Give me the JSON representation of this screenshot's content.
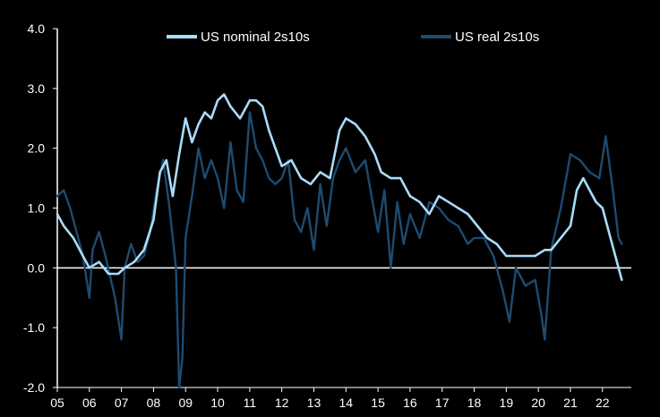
{
  "chart_data": {
    "type": "line",
    "title": "",
    "xlabel": "",
    "ylabel": "",
    "xlim": [
      2005.0,
      2022.9
    ],
    "ylim": [
      -2.0,
      4.0
    ],
    "yticks": [
      4.0,
      3.0,
      2.0,
      1.0,
      0.0,
      -1.0,
      -2.0
    ],
    "ytick_labels": [
      "4.0",
      "3.0",
      "2.0",
      "1.0",
      "0.0",
      "-1.0",
      "-2.0"
    ],
    "xticks": [
      2005,
      2006,
      2007,
      2008,
      2009,
      2010,
      2011,
      2012,
      2013,
      2014,
      2015,
      2016,
      2017,
      2018,
      2019,
      2020,
      2021,
      2022
    ],
    "xtick_labels": [
      "05",
      "06",
      "07",
      "08",
      "09",
      "10",
      "11",
      "12",
      "13",
      "14",
      "15",
      "16",
      "17",
      "18",
      "19",
      "20",
      "21",
      "22"
    ],
    "grid": false,
    "legend_position": "top",
    "background": "#000000",
    "series": [
      {
        "name": "US nominal 2s10s",
        "color": "#a9dcf7",
        "x": [
          2005.0,
          2005.2,
          2005.5,
          2005.8,
          2006.0,
          2006.3,
          2006.6,
          2006.9,
          2007.1,
          2007.4,
          2007.7,
          2008.0,
          2008.2,
          2008.4,
          2008.6,
          2008.8,
          2009.0,
          2009.2,
          2009.4,
          2009.6,
          2009.8,
          2010.0,
          2010.2,
          2010.4,
          2010.7,
          2011.0,
          2011.2,
          2011.4,
          2011.6,
          2011.8,
          2012.0,
          2012.3,
          2012.6,
          2012.9,
          2013.2,
          2013.5,
          2013.8,
          2014.0,
          2014.3,
          2014.6,
          2014.9,
          2015.1,
          2015.4,
          2015.7,
          2016.0,
          2016.3,
          2016.6,
          2016.9,
          2017.2,
          2017.5,
          2017.8,
          2018.1,
          2018.4,
          2018.7,
          2019.0,
          2019.3,
          2019.6,
          2019.9,
          2020.2,
          2020.4,
          2020.7,
          2021.0,
          2021.2,
          2021.4,
          2021.6,
          2021.8,
          2022.0,
          2022.2,
          2022.4,
          2022.6
        ],
        "y": [
          0.9,
          0.7,
          0.5,
          0.2,
          0.0,
          0.1,
          -0.1,
          -0.1,
          0.0,
          0.1,
          0.3,
          0.8,
          1.6,
          1.8,
          1.2,
          1.9,
          2.5,
          2.1,
          2.4,
          2.6,
          2.5,
          2.8,
          2.9,
          2.7,
          2.5,
          2.8,
          2.8,
          2.7,
          2.3,
          2.0,
          1.7,
          1.8,
          1.5,
          1.4,
          1.6,
          1.5,
          2.3,
          2.5,
          2.4,
          2.2,
          1.9,
          1.6,
          1.5,
          1.5,
          1.2,
          1.1,
          0.9,
          1.2,
          1.1,
          1.0,
          0.9,
          0.7,
          0.5,
          0.4,
          0.2,
          0.2,
          0.2,
          0.2,
          0.3,
          0.3,
          0.5,
          0.7,
          1.3,
          1.5,
          1.3,
          1.1,
          1.0,
          0.6,
          0.2,
          -0.2
        ]
      },
      {
        "name": "US real 2s10s",
        "color": "#1e4b70",
        "x": [
          2005.0,
          2005.2,
          2005.4,
          2005.6,
          2005.8,
          2006.0,
          2006.1,
          2006.3,
          2006.5,
          2006.8,
          2007.0,
          2007.1,
          2007.3,
          2007.5,
          2007.7,
          2007.9,
          2008.1,
          2008.3,
          2008.5,
          2008.7,
          2008.8,
          2008.9,
          2009.0,
          2009.2,
          2009.4,
          2009.6,
          2009.8,
          2010.0,
          2010.2,
          2010.4,
          2010.6,
          2010.8,
          2011.0,
          2011.2,
          2011.4,
          2011.6,
          2011.8,
          2012.0,
          2012.2,
          2012.4,
          2012.6,
          2012.8,
          2013.0,
          2013.2,
          2013.4,
          2013.6,
          2013.8,
          2014.0,
          2014.3,
          2014.6,
          2014.8,
          2015.0,
          2015.2,
          2015.4,
          2015.6,
          2015.8,
          2016.0,
          2016.3,
          2016.6,
          2016.9,
          2017.2,
          2017.5,
          2017.8,
          2018.0,
          2018.3,
          2018.6,
          2018.9,
          2019.1,
          2019.3,
          2019.6,
          2019.9,
          2020.1,
          2020.2,
          2020.4,
          2020.7,
          2021.0,
          2021.3,
          2021.6,
          2021.9,
          2022.1,
          2022.3,
          2022.5,
          2022.6
        ],
        "y": [
          1.2,
          1.3,
          1.0,
          0.6,
          0.2,
          -0.5,
          0.3,
          0.6,
          0.2,
          -0.5,
          -1.2,
          0.0,
          0.4,
          0.1,
          0.2,
          0.6,
          1.3,
          1.8,
          1.0,
          0.0,
          -2.0,
          -1.5,
          0.5,
          1.2,
          2.0,
          1.5,
          1.8,
          1.5,
          1.0,
          2.1,
          1.3,
          1.1,
          2.6,
          2.0,
          1.8,
          1.5,
          1.4,
          1.5,
          1.8,
          0.8,
          0.6,
          1.0,
          0.3,
          1.4,
          0.7,
          1.5,
          1.8,
          2.0,
          1.6,
          1.8,
          1.2,
          0.6,
          1.3,
          0.0,
          1.1,
          0.4,
          0.9,
          0.5,
          1.1,
          1.0,
          0.8,
          0.7,
          0.4,
          0.5,
          0.5,
          0.2,
          -0.4,
          -0.9,
          0.0,
          -0.3,
          -0.2,
          -0.8,
          -1.2,
          0.3,
          1.0,
          1.9,
          1.8,
          1.6,
          1.5,
          2.2,
          1.4,
          0.5,
          0.4
        ]
      }
    ]
  }
}
